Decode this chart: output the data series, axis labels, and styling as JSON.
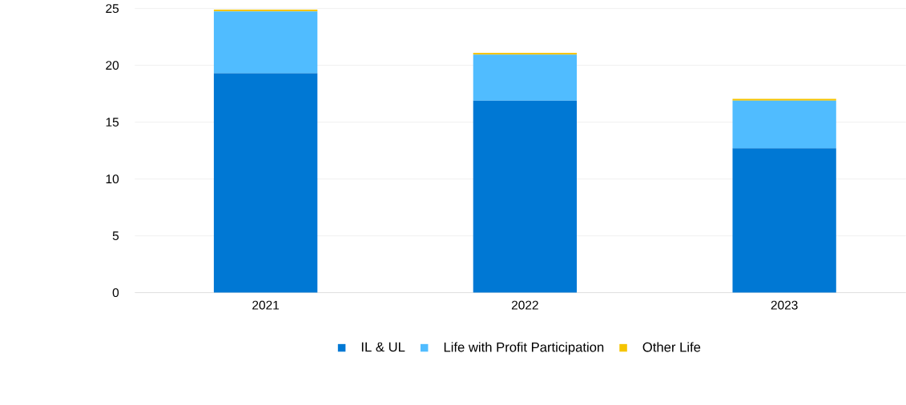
{
  "chart_data": {
    "type": "bar",
    "stacked": true,
    "categories": [
      "2021",
      "2022",
      "2023"
    ],
    "series": [
      {
        "name": "IL & UL",
        "color": "#0078d4",
        "values": [
          19.3,
          16.9,
          12.7
        ]
      },
      {
        "name": "Life with Profit Participation",
        "color": "#50bcff",
        "values": [
          5.45,
          4.05,
          4.2
        ]
      },
      {
        "name": "Other Life",
        "color": "#f5c400",
        "values": [
          0.15,
          0.15,
          0.15
        ]
      }
    ],
    "ylim": [
      0,
      25
    ],
    "yticks": [
      0,
      5,
      10,
      15,
      20,
      25
    ],
    "grid": "y",
    "legend": "bottom"
  }
}
